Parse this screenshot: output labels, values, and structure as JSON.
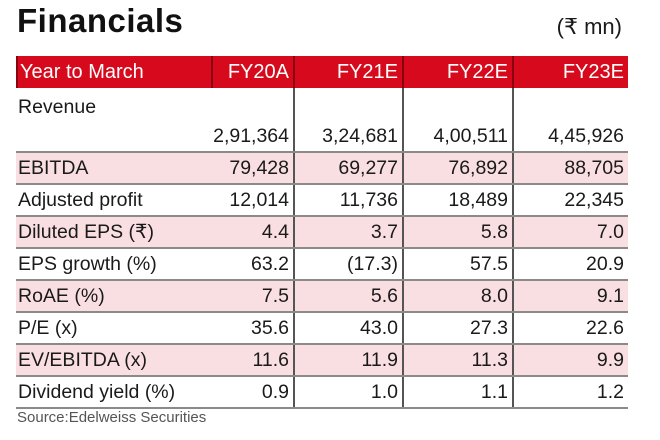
{
  "header": {
    "title": "Financials",
    "unit": "(₹ mn)"
  },
  "table": {
    "columns": [
      "Year to March",
      "FY20A",
      "FY21E",
      "FY22E",
      "FY23E"
    ],
    "rows": [
      {
        "label": "Revenue",
        "values": [
          "2,91,364",
          "3,24,681",
          "4,00,511",
          "4,45,926"
        ]
      },
      {
        "label": "EBITDA",
        "values": [
          "79,428",
          "69,277",
          "76,892",
          "88,705"
        ]
      },
      {
        "label": "Adjusted profit",
        "values": [
          "12,014",
          "11,736",
          "18,489",
          "22,345"
        ]
      },
      {
        "label": "Diluted EPS (₹)",
        "values": [
          "4.4",
          "3.7",
          "5.8",
          "7.0"
        ]
      },
      {
        "label": "EPS growth (%)",
        "values": [
          "63.2",
          "(17.3)",
          "57.5",
          "20.9"
        ]
      },
      {
        "label": "RoAE (%)",
        "values": [
          "7.5",
          "5.6",
          "8.0",
          "9.1"
        ]
      },
      {
        "label": "P/E (x)",
        "values": [
          "35.6",
          "43.0",
          "27.3",
          "22.6"
        ]
      },
      {
        "label": "EV/EBITDA (x)",
        "values": [
          "11.6",
          "11.9",
          "11.3",
          "9.9"
        ]
      },
      {
        "label": "Dividend yield (%)",
        "values": [
          "0.9",
          "1.0",
          "1.1",
          "1.2"
        ]
      }
    ]
  },
  "footer": {
    "source": "Source:Edelweiss Securities"
  },
  "colors": {
    "header_bg": "#d60a1c",
    "shade_bg": "#f9dfe2"
  }
}
